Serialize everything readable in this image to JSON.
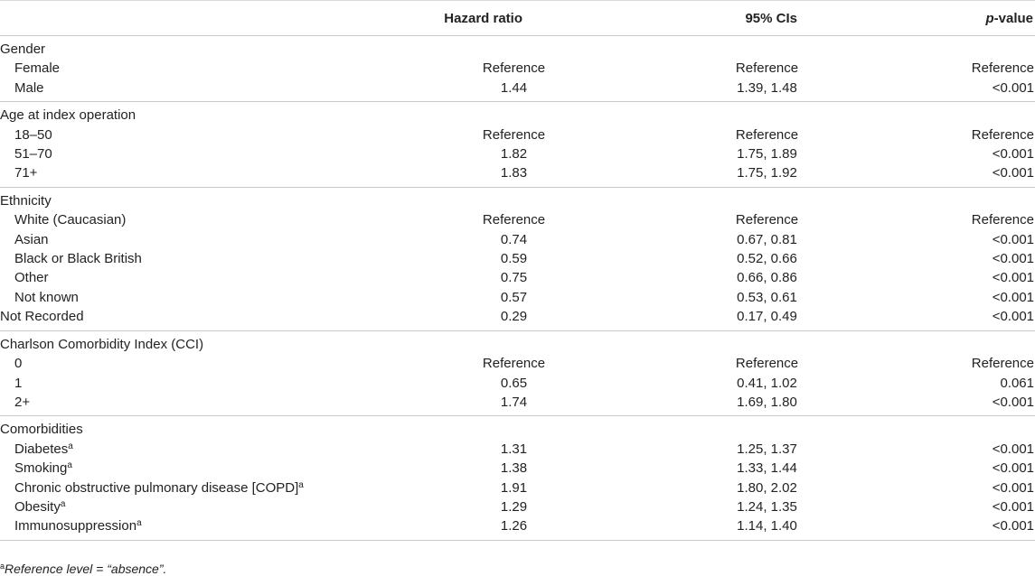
{
  "header": {
    "col1": "Hazard ratio",
    "col2": "95% CIs",
    "col3_italic": "p",
    "col3_rest": "-value"
  },
  "groups": [
    {
      "title": "Gender",
      "rows": [
        {
          "label": "Female",
          "hr": "Reference",
          "ci": "Reference",
          "p": "Reference"
        },
        {
          "label": "Male",
          "hr": "1.44",
          "ci": "1.39, 1.48",
          "p": "<0.001"
        }
      ]
    },
    {
      "title": "Age at index operation",
      "rows": [
        {
          "label": "18–50",
          "hr": "Reference",
          "ci": "Reference",
          "p": "Reference"
        },
        {
          "label": "51–70",
          "hr": "1.82",
          "ci": "1.75, 1.89",
          "p": "<0.001"
        },
        {
          "label": "71+",
          "hr": "1.83",
          "ci": "1.75, 1.92",
          "p": "<0.001"
        }
      ]
    },
    {
      "title": "Ethnicity",
      "rows": [
        {
          "label": "White (Caucasian)",
          "hr": "Reference",
          "ci": "Reference",
          "p": "Reference"
        },
        {
          "label": "Asian",
          "hr": "0.74",
          "ci": "0.67, 0.81",
          "p": "<0.001"
        },
        {
          "label": "Black or Black British",
          "hr": "0.59",
          "ci": "0.52, 0.66",
          "p": "<0.001"
        },
        {
          "label": "Other",
          "hr": "0.75",
          "ci": "0.66, 0.86",
          "p": "<0.001"
        },
        {
          "label": "Not known",
          "hr": "0.57",
          "ci": "0.53, 0.61",
          "p": "<0.001"
        },
        {
          "label": "Not Recorded",
          "hr": "0.29",
          "ci": "0.17, 0.49",
          "p": "<0.001",
          "noindent": true
        }
      ]
    },
    {
      "title": "Charlson Comorbidity Index (CCI)",
      "rows": [
        {
          "label": "0",
          "hr": "Reference",
          "ci": "Reference",
          "p": "Reference"
        },
        {
          "label": "1",
          "hr": "0.65",
          "ci": "0.41, 1.02",
          "p": "0.061"
        },
        {
          "label": "2+",
          "hr": "1.74",
          "ci": "1.69, 1.80",
          "p": "<0.001"
        }
      ]
    },
    {
      "title": "Comorbidities",
      "rows": [
        {
          "label": "Diabetes",
          "sup": "a",
          "hr": "1.31",
          "ci": "1.25, 1.37",
          "p": "<0.001"
        },
        {
          "label": "Smoking",
          "sup": "a",
          "hr": "1.38",
          "ci": "1.33, 1.44",
          "p": "<0.001"
        },
        {
          "label": "Chronic obstructive pulmonary disease [COPD]",
          "sup": "a",
          "hr": "1.91",
          "ci": "1.80, 2.02",
          "p": "<0.001"
        },
        {
          "label": "Obesity",
          "sup": "a",
          "hr": "1.29",
          "ci": "1.24, 1.35",
          "p": "<0.001"
        },
        {
          "label": "Immunosuppression",
          "sup": "a",
          "hr": "1.26",
          "ci": "1.14, 1.40",
          "p": "<0.001"
        }
      ]
    }
  ],
  "footnote": {
    "mark": "a",
    "text": "Reference level = “absence”."
  }
}
